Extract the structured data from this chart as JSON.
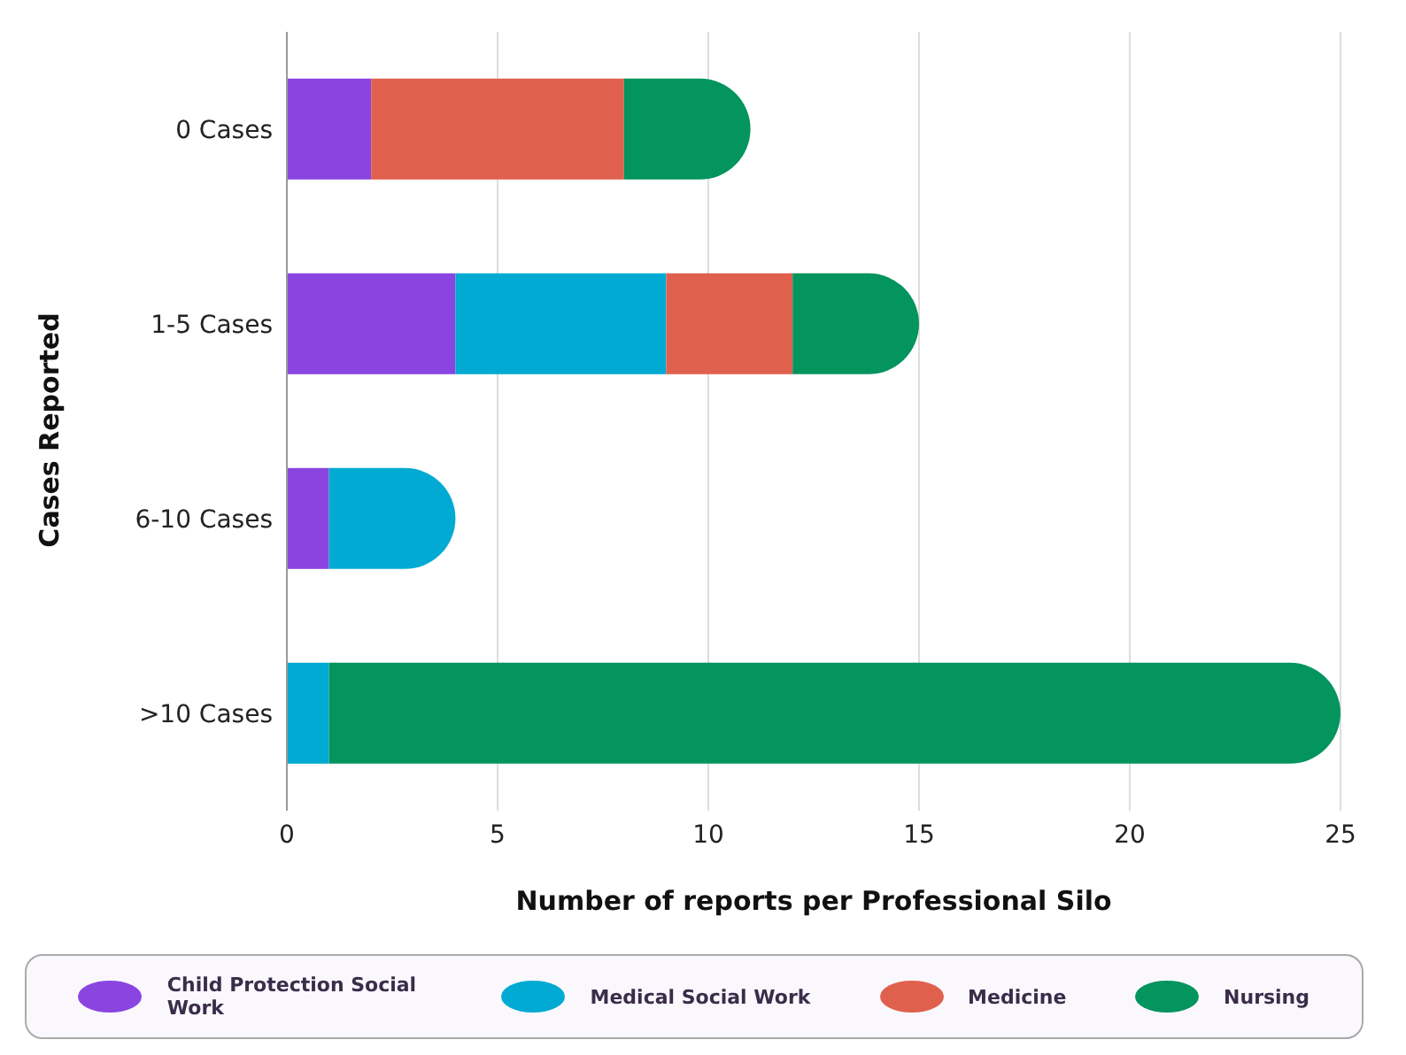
{
  "chart_data": {
    "type": "bar",
    "orientation": "horizontal",
    "stacked": true,
    "categories": [
      "0 Cases",
      "1-5 Cases",
      "6-10 Cases",
      ">10 Cases"
    ],
    "xlabel": "Number of reports per Professional Silo",
    "ylabel": "Cases Reported",
    "series": [
      {
        "name": "Child Protection Social Work",
        "color": "#8a45e0",
        "values": [
          2,
          4,
          1,
          null
        ]
      },
      {
        "name": "Medical Social Work",
        "color": "#00aad2",
        "values": [
          null,
          5,
          3,
          1
        ]
      },
      {
        "name": "Medicine",
        "color": "#e0604e",
        "values": [
          6,
          3,
          null,
          null
        ]
      },
      {
        "name": "Nursing",
        "color": "#04945e",
        "values": [
          3,
          3,
          null,
          24
        ]
      }
    ],
    "xlim": [
      0,
      25
    ],
    "xticks": [
      0,
      5,
      10,
      15,
      20,
      25
    ],
    "grid": "x",
    "legend": "bottom"
  }
}
